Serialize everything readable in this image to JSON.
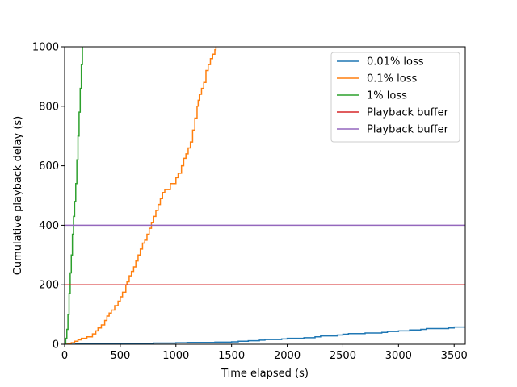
{
  "chart_data": {
    "type": "line",
    "title": "",
    "xlabel": "Time elapsed (s)",
    "ylabel": "Cumulative playback delay (s)",
    "xlim": [
      0,
      3600
    ],
    "ylim": [
      0,
      1000
    ],
    "xticks": [
      0,
      500,
      1000,
      1500,
      2000,
      2500,
      3000,
      3500
    ],
    "yticks": [
      0,
      200,
      400,
      600,
      800,
      1000
    ],
    "grid": false,
    "legend_position": "top-right",
    "series": [
      {
        "name": "0.01% loss",
        "color": "#1f77b4",
        "step": true,
        "x": [
          0,
          100,
          300,
          500,
          800,
          1000,
          1100,
          1350,
          1500,
          1560,
          1650,
          1750,
          1800,
          1950,
          2000,
          2150,
          2250,
          2300,
          2450,
          2500,
          2550,
          2700,
          2850,
          2900,
          3000,
          3100,
          3200,
          3250,
          3450,
          3500,
          3600
        ],
        "y": [
          0,
          1,
          2,
          3,
          4,
          5,
          6,
          7,
          8,
          10,
          12,
          14,
          16,
          18,
          20,
          22,
          25,
          28,
          31,
          34,
          36,
          38,
          40,
          43,
          45,
          48,
          50,
          53,
          55,
          58,
          60
        ]
      },
      {
        "name": "0.1% loss",
        "color": "#ff7f0e",
        "step": true,
        "x": [
          0,
          30,
          60,
          90,
          120,
          150,
          200,
          250,
          280,
          300,
          330,
          360,
          380,
          400,
          420,
          450,
          480,
          500,
          520,
          550,
          560,
          580,
          600,
          620,
          640,
          660,
          680,
          700,
          720,
          740,
          760,
          780,
          800,
          820,
          840,
          860,
          880,
          900,
          950,
          1000,
          1020,
          1050,
          1070,
          1090,
          1110,
          1130,
          1150,
          1170,
          1190,
          1200,
          1210,
          1230,
          1250,
          1270,
          1290,
          1310,
          1330,
          1350,
          1360
        ],
        "y": [
          0,
          2,
          5,
          10,
          15,
          20,
          25,
          35,
          45,
          55,
          65,
          80,
          95,
          105,
          115,
          130,
          145,
          160,
          175,
          200,
          210,
          230,
          245,
          260,
          280,
          300,
          320,
          340,
          350,
          370,
          390,
          410,
          430,
          450,
          470,
          490,
          510,
          520,
          540,
          560,
          575,
          600,
          625,
          640,
          660,
          680,
          720,
          760,
          800,
          820,
          840,
          860,
          880,
          920,
          940,
          960,
          975,
          990,
          1000
        ]
      },
      {
        "name": "1% loss",
        "color": "#2ca02c",
        "step": true,
        "x": [
          0,
          10,
          20,
          30,
          40,
          50,
          60,
          70,
          80,
          90,
          100,
          110,
          120,
          130,
          140,
          150,
          160
        ],
        "y": [
          0,
          20,
          50,
          100,
          170,
          240,
          300,
          370,
          430,
          480,
          540,
          620,
          700,
          780,
          860,
          940,
          1000
        ]
      },
      {
        "name": "Playback buffer",
        "color": "#d62728",
        "step": false,
        "x": [
          0,
          3600
        ],
        "y": [
          200,
          200
        ]
      },
      {
        "name": "Playback buffer",
        "color": "#9467bd",
        "step": false,
        "x": [
          0,
          3600
        ],
        "y": [
          400,
          400
        ]
      }
    ]
  }
}
